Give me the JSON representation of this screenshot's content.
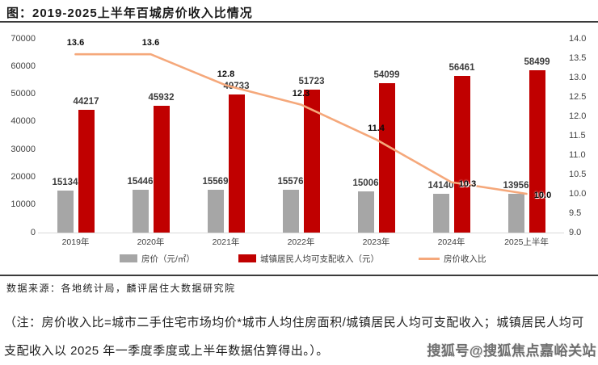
{
  "title": "图：2019-2025上半年百城房价收入比情况",
  "chart_data": {
    "type": "bar",
    "subtype": "grouped bars with secondary-axis line",
    "categories": [
      "2019年",
      "2020年",
      "2021年",
      "2022年",
      "2023年",
      "2024年",
      "2025上半年"
    ],
    "series": [
      {
        "name": "房价（元/㎡）",
        "kind": "bar",
        "color": "#a6a6a6",
        "axis": "left",
        "values": [
          15134,
          15446,
          15569,
          15576,
          15006,
          14140,
          13956
        ]
      },
      {
        "name": "城镇居民人均可支配收入（元）",
        "kind": "bar",
        "color": "#c00000",
        "axis": "left",
        "values": [
          44217,
          45932,
          49733,
          51723,
          54099,
          56461,
          58499
        ]
      },
      {
        "name": "房价收入比",
        "kind": "line",
        "color": "#f5a87b",
        "axis": "right",
        "values": [
          13.6,
          13.6,
          12.8,
          12.3,
          11.4,
          10.3,
          10.0
        ]
      }
    ],
    "left_axis": {
      "min": 0,
      "max": 70000,
      "step": 10000
    },
    "right_axis": {
      "min": 9.0,
      "max": 14.0,
      "step": 0.5
    },
    "legend_position": "bottom",
    "grid": false
  },
  "source_note": "数据来源：各地统计局，麟评居住大数据研究院",
  "footnote": "（注：房价收入比=城市二手住宅市场均价*城市人均住房面积/城镇居民人均可支配收入；城镇居民人均可支配收入以 2025 年一季度季度或上半年数据估算得出。）。",
  "watermark": "搜狐号@搜狐焦点嘉峪关站"
}
